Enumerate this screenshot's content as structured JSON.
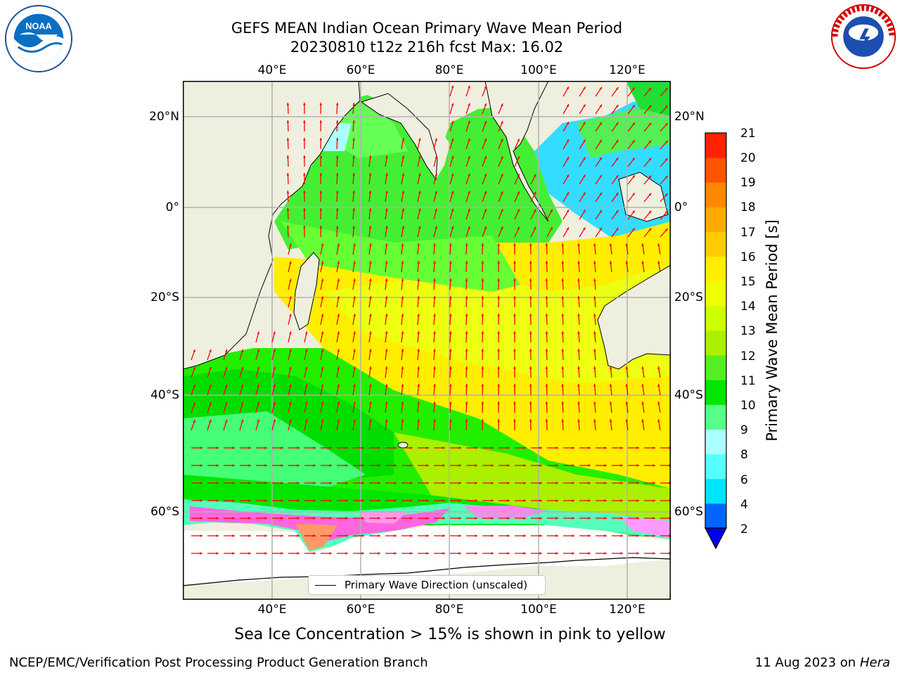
{
  "title": {
    "line1": "GEFS MEAN Indian Ocean Primary Wave Mean Period",
    "line2": "20230810 t12z 216h fcst   Max: 16.02"
  },
  "map": {
    "lon_ticks": [
      "40°E",
      "60°E",
      "80°E",
      "100°E",
      "120°E"
    ],
    "lat_ticks": [
      "20°N",
      "0°",
      "20°S",
      "40°S",
      "60°S"
    ],
    "legend_label": "Primary Wave Direction (unscaled)",
    "arrow_color": "#ff0000",
    "land_color": "#efefdf",
    "ice_color": "#ffffff"
  },
  "colorbar": {
    "label": "Primary Wave Mean Period [s]",
    "ticks": [
      "2",
      "4",
      "6",
      "8",
      "9",
      "10",
      "11",
      "12",
      "13",
      "14",
      "15",
      "16",
      "17",
      "18",
      "19",
      "20",
      "21"
    ],
    "colors": [
      "#0066ff",
      "#00e5ff",
      "#55ffff",
      "#aaffff",
      "#55ff88",
      "#00e600",
      "#55ee22",
      "#aaf000",
      "#ccff00",
      "#eeff00",
      "#ffee00",
      "#ffcc00",
      "#ffaa00",
      "#ff8800",
      "#ff5500",
      "#ff2200"
    ],
    "under_color": "#0000ee"
  },
  "caption": "Sea Ice Concentration > 15% is shown in pink to yellow",
  "footer": {
    "left": "NCEP/EMC/Verification Post Processing Product Generation Branch",
    "right_date": "11 Aug 2023 on",
    "right_host": "Hera"
  },
  "logos": {
    "noaa_text": "NOAA",
    "nws_text": "NATIONAL WEATHER SERVICE"
  }
}
